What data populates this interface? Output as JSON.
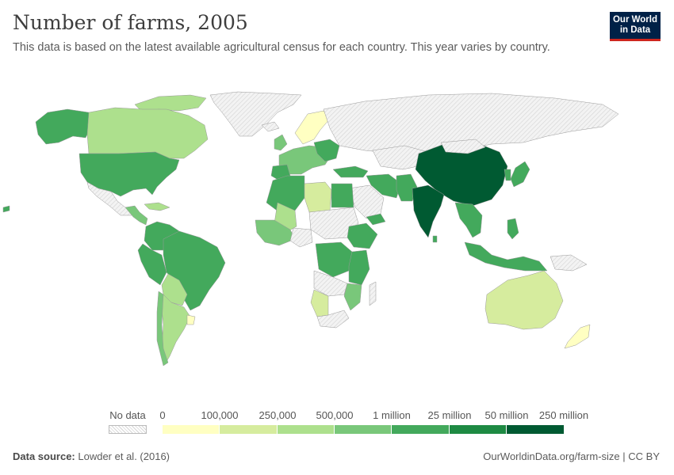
{
  "header": {
    "title": "Number of farms, 2005",
    "subtitle": "This data is based on the latest available agricultural census for each country. This year varies by country."
  },
  "logo": {
    "line1": "Our World",
    "line2": "in Data"
  },
  "legend": {
    "nodata_label": "No data",
    "tick_labels": [
      "0",
      "100,000",
      "250,000",
      "500,000",
      "1 million",
      "25 million",
      "50 million",
      "250 million"
    ],
    "colors": [
      "#ffffc2",
      "#d6ec9e",
      "#ade08d",
      "#79c77a",
      "#43a95c",
      "#1e8a43",
      "#005a32"
    ]
  },
  "footer": {
    "source_label": "Data source:",
    "source_value": "Lowder et al. (2016)",
    "url": "OurWorldinData.org/farm-size | CC BY"
  },
  "colors": {
    "no_data_fill": "#eeeeee",
    "border": "#999999",
    "logo_bg": "#002147",
    "logo_accent": "#ce261e"
  }
}
